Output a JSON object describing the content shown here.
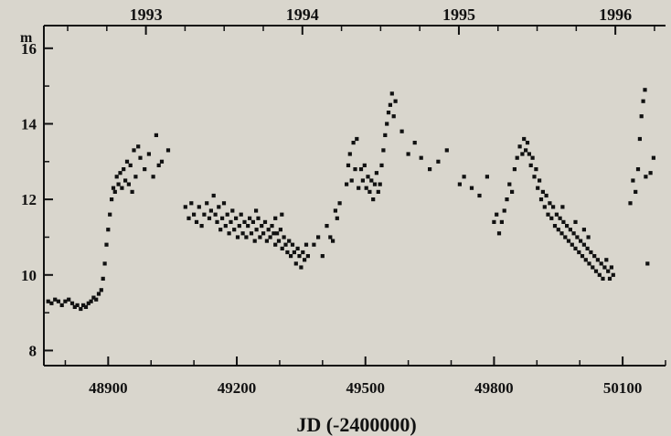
{
  "chart_data": {
    "type": "scatter",
    "title": "",
    "xlabel": "JD (-2400000)",
    "ylabel": "m",
    "xlim": [
      48750,
      50200
    ],
    "ylim": [
      16.6,
      7.6
    ],
    "y_inverted": true,
    "grid": false,
    "x_ticks": [
      48900,
      49200,
      49500,
      49800,
      50100
    ],
    "y_ticks": [
      8,
      10,
      12,
      14,
      16
    ],
    "year_ticks": [
      {
        "label": "1993",
        "x": 48988
      },
      {
        "label": "1994",
        "x": 49353
      },
      {
        "label": "1995",
        "x": 49718
      },
      {
        "label": "1996",
        "x": 50083
      }
    ],
    "marker": "square",
    "marker_color": "#111111",
    "points": [
      [
        48760,
        9.3
      ],
      [
        48768,
        9.25
      ],
      [
        48776,
        9.35
      ],
      [
        48784,
        9.3
      ],
      [
        48792,
        9.2
      ],
      [
        48800,
        9.3
      ],
      [
        48808,
        9.35
      ],
      [
        48816,
        9.25
      ],
      [
        48822,
        9.15
      ],
      [
        48828,
        9.2
      ],
      [
        48836,
        9.1
      ],
      [
        48842,
        9.2
      ],
      [
        48848,
        9.15
      ],
      [
        48854,
        9.25
      ],
      [
        48860,
        9.3
      ],
      [
        48866,
        9.4
      ],
      [
        48872,
        9.35
      ],
      [
        48878,
        9.5
      ],
      [
        48884,
        9.6
      ],
      [
        48888,
        9.9
      ],
      [
        48892,
        10.3
      ],
      [
        48896,
        10.8
      ],
      [
        48900,
        11.2
      ],
      [
        48904,
        11.6
      ],
      [
        48908,
        12.0
      ],
      [
        48912,
        12.3
      ],
      [
        48916,
        12.2
      ],
      [
        48920,
        12.6
      ],
      [
        48924,
        12.4
      ],
      [
        48928,
        12.7
      ],
      [
        48932,
        12.3
      ],
      [
        48936,
        12.8
      ],
      [
        48940,
        12.5
      ],
      [
        48944,
        13.0
      ],
      [
        48948,
        12.4
      ],
      [
        48952,
        12.9
      ],
      [
        48956,
        12.2
      ],
      [
        48960,
        13.3
      ],
      [
        48964,
        12.6
      ],
      [
        48970,
        13.4
      ],
      [
        48975,
        13.1
      ],
      [
        48985,
        12.8
      ],
      [
        48995,
        13.2
      ],
      [
        49005,
        12.6
      ],
      [
        49012,
        13.7
      ],
      [
        49018,
        12.9
      ],
      [
        49025,
        13.0
      ],
      [
        49040,
        13.3
      ],
      [
        49080,
        11.8
      ],
      [
        49088,
        11.5
      ],
      [
        49094,
        11.9
      ],
      [
        49100,
        11.6
      ],
      [
        49106,
        11.4
      ],
      [
        49112,
        11.8
      ],
      [
        49118,
        11.3
      ],
      [
        49124,
        11.6
      ],
      [
        49130,
        11.9
      ],
      [
        49136,
        11.5
      ],
      [
        49140,
        11.7
      ],
      [
        49146,
        12.1
      ],
      [
        49150,
        11.6
      ],
      [
        49154,
        11.4
      ],
      [
        49158,
        11.8
      ],
      [
        49162,
        11.2
      ],
      [
        49166,
        11.5
      ],
      [
        49170,
        11.9
      ],
      [
        49174,
        11.3
      ],
      [
        49178,
        11.6
      ],
      [
        49182,
        11.1
      ],
      [
        49186,
        11.4
      ],
      [
        49190,
        11.7
      ],
      [
        49194,
        11.2
      ],
      [
        49198,
        11.5
      ],
      [
        49202,
        11.0
      ],
      [
        49206,
        11.3
      ],
      [
        49210,
        11.6
      ],
      [
        49214,
        11.1
      ],
      [
        49218,
        11.4
      ],
      [
        49222,
        11.0
      ],
      [
        49226,
        11.3
      ],
      [
        49230,
        11.5
      ],
      [
        49234,
        11.1
      ],
      [
        49238,
        11.4
      ],
      [
        49242,
        10.9
      ],
      [
        49246,
        11.2
      ],
      [
        49250,
        11.5
      ],
      [
        49254,
        11.0
      ],
      [
        49258,
        11.3
      ],
      [
        49262,
        11.1
      ],
      [
        49266,
        11.4
      ],
      [
        49270,
        10.9
      ],
      [
        49274,
        11.2
      ],
      [
        49278,
        11.0
      ],
      [
        49282,
        11.3
      ],
      [
        49286,
        11.1
      ],
      [
        49290,
        10.8
      ],
      [
        49294,
        11.1
      ],
      [
        49298,
        10.9
      ],
      [
        49302,
        11.2
      ],
      [
        49306,
        10.7
      ],
      [
        49310,
        11.0
      ],
      [
        49314,
        10.8
      ],
      [
        49318,
        10.6
      ],
      [
        49322,
        10.9
      ],
      [
        49326,
        10.5
      ],
      [
        49330,
        10.8
      ],
      [
        49334,
        10.6
      ],
      [
        49338,
        10.3
      ],
      [
        49342,
        10.7
      ],
      [
        49346,
        10.5
      ],
      [
        49350,
        10.2
      ],
      [
        49354,
        10.6
      ],
      [
        49358,
        10.4
      ],
      [
        49362,
        10.8
      ],
      [
        49366,
        10.5
      ],
      [
        49305,
        11.6
      ],
      [
        49290,
        11.5
      ],
      [
        49245,
        11.7
      ],
      [
        49380,
        10.8
      ],
      [
        49390,
        11.0
      ],
      [
        49400,
        10.5
      ],
      [
        49410,
        11.3
      ],
      [
        49418,
        11.0
      ],
      [
        49424,
        10.9
      ],
      [
        49430,
        11.7
      ],
      [
        49434,
        11.5
      ],
      [
        49440,
        11.9
      ],
      [
        49456,
        12.4
      ],
      [
        49460,
        12.9
      ],
      [
        49464,
        13.2
      ],
      [
        49468,
        12.5
      ],
      [
        49472,
        13.5
      ],
      [
        49476,
        12.8
      ],
      [
        49480,
        13.6
      ],
      [
        49484,
        12.3
      ],
      [
        49490,
        12.8
      ],
      [
        49494,
        12.5
      ],
      [
        49498,
        12.9
      ],
      [
        49502,
        12.3
      ],
      [
        49506,
        12.6
      ],
      [
        49510,
        12.2
      ],
      [
        49514,
        12.5
      ],
      [
        49518,
        12.0
      ],
      [
        49522,
        12.4
      ],
      [
        49526,
        12.7
      ],
      [
        49530,
        12.2
      ],
      [
        49534,
        12.4
      ],
      [
        49538,
        12.9
      ],
      [
        49542,
        13.3
      ],
      [
        49546,
        13.7
      ],
      [
        49550,
        14.0
      ],
      [
        49554,
        14.3
      ],
      [
        49558,
        14.5
      ],
      [
        49562,
        14.8
      ],
      [
        49566,
        14.2
      ],
      [
        49570,
        14.6
      ],
      [
        49585,
        13.8
      ],
      [
        49600,
        13.2
      ],
      [
        49615,
        13.5
      ],
      [
        49630,
        13.1
      ],
      [
        49650,
        12.8
      ],
      [
        49670,
        13.0
      ],
      [
        49690,
        13.3
      ],
      [
        49720,
        12.4
      ],
      [
        49730,
        12.6
      ],
      [
        49748,
        12.3
      ],
      [
        49766,
        12.1
      ],
      [
        49784,
        12.6
      ],
      [
        49800,
        11.4
      ],
      [
        49806,
        11.6
      ],
      [
        49812,
        11.1
      ],
      [
        49818,
        11.4
      ],
      [
        49824,
        11.7
      ],
      [
        49830,
        12.0
      ],
      [
        49836,
        12.4
      ],
      [
        49842,
        12.2
      ],
      [
        49848,
        12.8
      ],
      [
        49854,
        13.1
      ],
      [
        49860,
        13.4
      ],
      [
        49866,
        13.2
      ],
      [
        49870,
        13.6
      ],
      [
        49874,
        13.3
      ],
      [
        49878,
        13.5
      ],
      [
        49882,
        13.2
      ],
      [
        49886,
        12.9
      ],
      [
        49890,
        13.1
      ],
      [
        49894,
        12.6
      ],
      [
        49898,
        12.8
      ],
      [
        49902,
        12.3
      ],
      [
        49906,
        12.5
      ],
      [
        49910,
        12.0
      ],
      [
        49914,
        12.2
      ],
      [
        49918,
        11.8
      ],
      [
        49922,
        12.1
      ],
      [
        49926,
        11.6
      ],
      [
        49930,
        11.9
      ],
      [
        49934,
        11.5
      ],
      [
        49938,
        11.8
      ],
      [
        49942,
        11.3
      ],
      [
        49946,
        11.6
      ],
      [
        49950,
        11.2
      ],
      [
        49954,
        11.5
      ],
      [
        49958,
        11.1
      ],
      [
        49962,
        11.4
      ],
      [
        49966,
        11.0
      ],
      [
        49970,
        11.3
      ],
      [
        49974,
        10.9
      ],
      [
        49978,
        11.2
      ],
      [
        49982,
        10.8
      ],
      [
        49986,
        11.1
      ],
      [
        49990,
        10.7
      ],
      [
        49994,
        11.0
      ],
      [
        49998,
        10.6
      ],
      [
        50002,
        10.9
      ],
      [
        50006,
        10.5
      ],
      [
        50010,
        10.8
      ],
      [
        50014,
        10.4
      ],
      [
        50018,
        10.7
      ],
      [
        50022,
        10.3
      ],
      [
        50026,
        10.6
      ],
      [
        50030,
        10.2
      ],
      [
        50034,
        10.5
      ],
      [
        50038,
        10.1
      ],
      [
        50042,
        10.4
      ],
      [
        50046,
        10.0
      ],
      [
        50050,
        10.3
      ],
      [
        50054,
        9.9
      ],
      [
        50058,
        10.2
      ],
      [
        50062,
        10.4
      ],
      [
        50066,
        10.1
      ],
      [
        50070,
        9.9
      ],
      [
        50074,
        10.2
      ],
      [
        50078,
        10.0
      ],
      [
        50010,
        11.2
      ],
      [
        50020,
        11.0
      ],
      [
        49990,
        11.4
      ],
      [
        49960,
        11.8
      ],
      [
        50118,
        11.9
      ],
      [
        50124,
        12.5
      ],
      [
        50130,
        12.2
      ],
      [
        50136,
        12.8
      ],
      [
        50140,
        13.6
      ],
      [
        50144,
        14.2
      ],
      [
        50148,
        14.6
      ],
      [
        50152,
        14.9
      ],
      [
        50154,
        12.6
      ],
      [
        50158,
        10.3
      ],
      [
        50165,
        12.7
      ],
      [
        50172,
        13.1
      ]
    ]
  }
}
